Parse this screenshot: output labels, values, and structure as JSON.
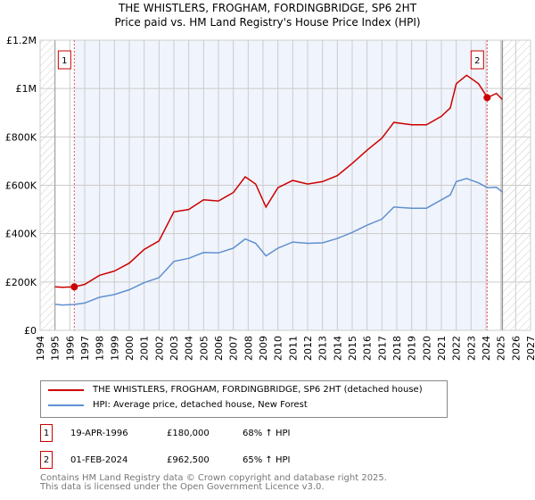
{
  "title_line1": "THE WHISTLERS, FROGHAM, FORDINGBRIDGE, SP6 2HT",
  "title_line2": "Price paid vs. HM Land Registry's House Price Index (HPI)",
  "colors": {
    "property": "#cc0000",
    "hpi": "#6090d0",
    "shade": "#f0f4fc"
  },
  "chart_data": {
    "type": "line",
    "xlim": [
      1994,
      2027
    ],
    "ylim": [
      0,
      1200000
    ],
    "x_ticks": [
      "1994",
      "1995",
      "1996",
      "1997",
      "1998",
      "1999",
      "2000",
      "2001",
      "2002",
      "2003",
      "2004",
      "2005",
      "2006",
      "2007",
      "2008",
      "2009",
      "2010",
      "2011",
      "2012",
      "2013",
      "2014",
      "2015",
      "2016",
      "2017",
      "2018",
      "2019",
      "2020",
      "2021",
      "2022",
      "2023",
      "2024",
      "2025",
      "2026",
      "2027"
    ],
    "y_ticks": [
      {
        "v": 0,
        "label": "£0"
      },
      {
        "v": 200000,
        "label": "£200K"
      },
      {
        "v": 400000,
        "label": "£400K"
      },
      {
        "v": 600000,
        "label": "£600K"
      },
      {
        "v": 800000,
        "label": "£800K"
      },
      {
        "v": 1000000,
        "label": "£1M"
      },
      {
        "v": 1200000,
        "label": "£1.2M"
      }
    ],
    "series": [
      {
        "name": "THE WHISTLERS, FROGHAM, FORDINGBRIDGE, SP6 2HT (detached house)",
        "x": [
          1995,
          1995.5,
          1996.3,
          1997,
          1998,
          1999,
          2000,
          2001,
          2002,
          2003,
          2004,
          2005,
          2006,
          2007,
          2007.8,
          2008.5,
          2009.2,
          2010,
          2011,
          2012,
          2013,
          2014,
          2015,
          2016,
          2017,
          2017.8,
          2019,
          2020,
          2021,
          2021.6,
          2022,
          2022.7,
          2023.5,
          2024.1,
          2024.7,
          2025.1
        ],
        "y": [
          180000,
          178000,
          180000,
          190000,
          228000,
          245000,
          278000,
          335000,
          370000,
          490000,
          500000,
          540000,
          535000,
          570000,
          635000,
          605000,
          510000,
          590000,
          620000,
          605000,
          615000,
          640000,
          690000,
          745000,
          795000,
          860000,
          850000,
          850000,
          885000,
          920000,
          1020000,
          1055000,
          1020000,
          962500,
          980000,
          955000
        ]
      },
      {
        "name": "HPI: Average price, detached house, New Forest",
        "x": [
          1995,
          1995.5,
          1996.3,
          1997,
          1998,
          1999,
          2000,
          2001,
          2002,
          2003,
          2004,
          2005,
          2006,
          2007,
          2007.8,
          2008.5,
          2009.2,
          2010,
          2011,
          2012,
          2013,
          2014,
          2015,
          2016,
          2017,
          2017.8,
          2019,
          2020,
          2021,
          2021.6,
          2022,
          2022.7,
          2023.5,
          2024.1,
          2024.7,
          2025.1
        ],
        "y": [
          108000,
          105000,
          107000,
          113000,
          137000,
          148000,
          168000,
          197000,
          218000,
          285000,
          298000,
          322000,
          320000,
          340000,
          378000,
          360000,
          308000,
          340000,
          365000,
          360000,
          362000,
          380000,
          405000,
          435000,
          460000,
          510000,
          505000,
          505000,
          540000,
          560000,
          615000,
          628000,
          610000,
          590000,
          592000,
          572000
        ]
      }
    ],
    "sales": [
      {
        "id": "1",
        "x": 1996.3,
        "y": 180000,
        "date": "19-APR-1996",
        "price": "£180,000",
        "hpi": "68% ↑ HPI"
      },
      {
        "id": "2",
        "x": 2024.08,
        "y": 962500,
        "date": "01-FEB-2024",
        "price": "£962,500",
        "hpi": "65% ↑ HPI"
      }
    ],
    "data_end": 2025.1,
    "grid": true
  },
  "footer_line1": "Contains HM Land Registry data © Crown copyright and database right 2025.",
  "footer_line2": "This data is licensed under the Open Government Licence v3.0."
}
